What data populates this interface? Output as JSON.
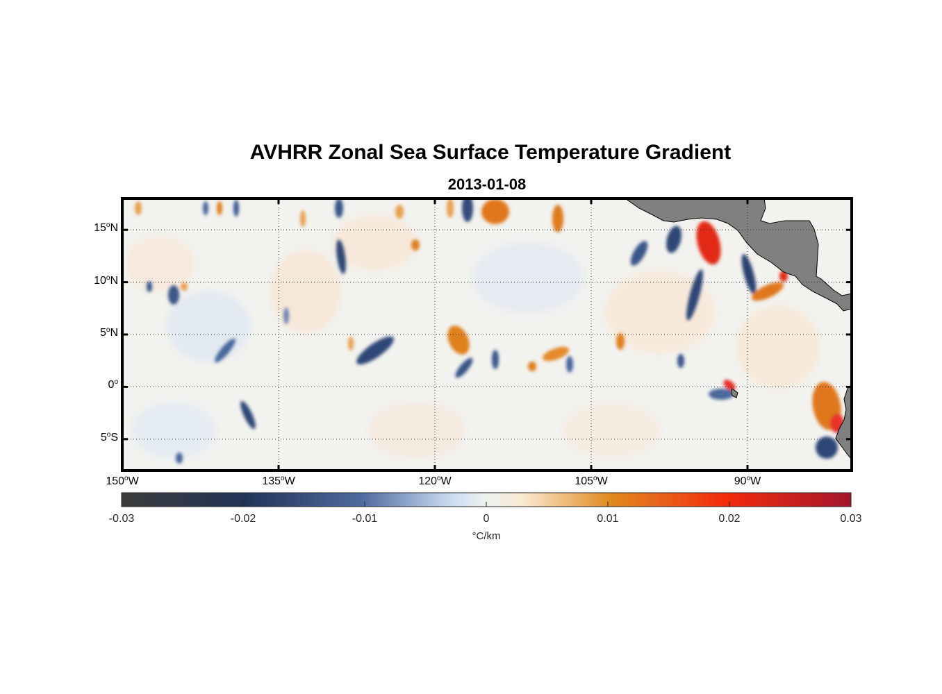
{
  "map": {
    "title": "AVHRR Zonal Sea Surface Temperature Gradient",
    "subtitle": "2013-01-08",
    "extent": {
      "lon_min": -150,
      "lon_max": -80,
      "lat_min": -8,
      "lat_max": 18
    },
    "lat_ticks": [
      {
        "value": 15,
        "num": "15",
        "hemi": "N"
      },
      {
        "value": 10,
        "num": "10",
        "hemi": "N"
      },
      {
        "value": 5,
        "num": "5",
        "hemi": "N"
      },
      {
        "value": 0,
        "num": "0",
        "hemi": ""
      },
      {
        "value": -5,
        "num": "5",
        "hemi": "S"
      }
    ],
    "lon_ticks": [
      {
        "value": -150,
        "num": "150",
        "hemi": "W"
      },
      {
        "value": -135,
        "num": "135",
        "hemi": "W"
      },
      {
        "value": -120,
        "num": "120",
        "hemi": "W"
      },
      {
        "value": -105,
        "num": "105",
        "hemi": "W"
      },
      {
        "value": -90,
        "num": "90",
        "hemi": "W"
      }
    ],
    "degree_symbol": "o",
    "land_color": "#808080",
    "grid": "dotted"
  },
  "colorbar": {
    "min": -0.03,
    "max": 0.03,
    "ticks": [
      "-0.03",
      "-0.02",
      "-0.01",
      "0",
      "0.01",
      "0.02",
      "0.03"
    ],
    "unit": "°C/km",
    "colors": [
      "#3c3c3c",
      "#233458",
      "#4e6b9f",
      "#c9daf0",
      "#fbe9d1",
      "#e08a20",
      "#f32b0b",
      "#a3162e"
    ]
  }
}
